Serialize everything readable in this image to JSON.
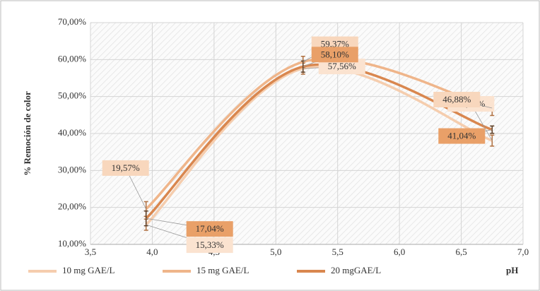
{
  "chart_data": {
    "type": "line",
    "y_label": "% Remoción de color",
    "x_label": "pH",
    "x": [
      3.95,
      5.22,
      6.75
    ],
    "series": [
      {
        "name": "10 mg GAE/L",
        "color": "#f5cdae",
        "values": [
          15.33,
          57.56,
          38.08
        ],
        "value_labels": [
          "15,33%",
          "57,56%",
          "38,08%"
        ],
        "errors": [
          1.5,
          1.5,
          1.5
        ]
      },
      {
        "name": "15 mg GAE/L",
        "color": "#efb58a",
        "values": [
          19.57,
          59.37,
          46.88
        ],
        "value_labels": [
          "19,57%",
          "59,37%",
          "46,88%"
        ],
        "errors": [
          2,
          1.5,
          2
        ]
      },
      {
        "name": "20 mgGAE/L",
        "color": "#d9874f",
        "values": [
          17.04,
          58.1,
          41.04
        ],
        "value_labels": [
          "17,04%",
          "58,10%",
          "41,04%"
        ],
        "errors": [
          2,
          1.5,
          1
        ]
      }
    ],
    "xlim": [
      3.5,
      7.0
    ],
    "xticks": [
      {
        "value": 3.5,
        "label": "3,5"
      },
      {
        "value": 4.0,
        "label": "4,0"
      },
      {
        "value": 4.5,
        "label": "4,5"
      },
      {
        "value": 5.0,
        "label": "5,0"
      },
      {
        "value": 5.5,
        "label": "5,5"
      },
      {
        "value": 6.0,
        "label": "6,0"
      },
      {
        "value": 6.5,
        "label": "6,5"
      },
      {
        "value": 7.0,
        "label": "7,0"
      }
    ],
    "ylim": [
      10,
      70
    ],
    "yticks": [
      {
        "value": 10,
        "label": "10,00%"
      },
      {
        "value": 20,
        "label": "20,00%"
      },
      {
        "value": 30,
        "label": "30,00%"
      },
      {
        "value": 40,
        "label": "40,00%"
      },
      {
        "value": 50,
        "label": "50,00%"
      },
      {
        "value": 60,
        "label": "60,00%"
      },
      {
        "value": 70,
        "label": "70,00%"
      }
    ],
    "grid": true
  }
}
